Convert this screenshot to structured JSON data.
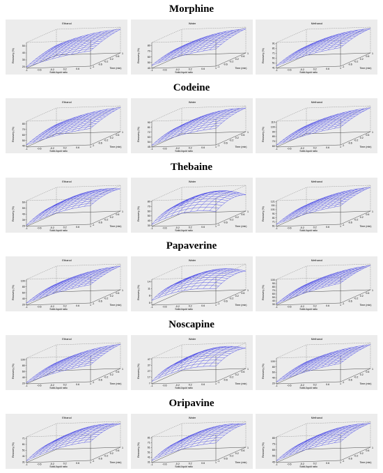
{
  "colors": {
    "mesh": "#4a4ae6",
    "panel_bg": "#ececec",
    "frame": "#333333"
  },
  "chart_data": [
    {
      "compound": "Morphine",
      "panels": [
        {
          "type": "surface3d",
          "title": "Ethanol",
          "xlabel": "Solid-liquid ratio",
          "ylabel": "Time (min)",
          "zlabel": "Recovery (%)",
          "xticks": [
            "-1",
            "-0.6",
            "-0.2",
            "0.2",
            "0.6",
            "1"
          ],
          "yticks": [
            "-1",
            "-0.6",
            "-0.2",
            "0.2",
            "0.6",
            "1"
          ],
          "zticks": [
            "20",
            "30",
            "40",
            "50"
          ],
          "zrange": [
            18,
            55
          ],
          "corners": {
            "x_lo_y_lo": 20,
            "x_hi_y_lo": 40,
            "x_lo_y_hi": 32,
            "x_hi_y_hi": 52
          },
          "curvature": 4
        },
        {
          "type": "surface3d",
          "title": "Water",
          "xlabel": "Solid-liquid ratio",
          "ylabel": "Time (min)",
          "zlabel": "Recovery (%)",
          "xticks": [
            "-1",
            "-0.6",
            "-0.2",
            "0.2",
            "0.6",
            "1"
          ],
          "yticks": [
            "-1",
            "-0.6",
            "-0.2",
            "0.2",
            "0.6",
            "1"
          ],
          "zticks": [
            "40",
            "50",
            "60",
            "70",
            "80"
          ],
          "zrange": [
            40,
            85
          ],
          "corners": {
            "x_lo_y_lo": 45,
            "x_hi_y_lo": 70,
            "x_lo_y_hi": 55,
            "x_hi_y_hi": 82
          },
          "curvature": 6
        },
        {
          "type": "surface3d",
          "title": "Methanol",
          "xlabel": "Solid-liquid ratio",
          "ylabel": "Time (min)",
          "zlabel": "Recovery (%)",
          "xticks": [
            "-1",
            "-0.6",
            "-0.2",
            "0.2",
            "0.6",
            "1"
          ],
          "yticks": [
            "-1",
            "-0.6",
            "-0.2",
            "0.2",
            "0.6",
            "1"
          ],
          "zticks": [
            "41",
            "51",
            "61",
            "71",
            "81",
            "91"
          ],
          "zrange": [
            40,
            93
          ],
          "corners": {
            "x_lo_y_lo": 45,
            "x_hi_y_lo": 78,
            "x_lo_y_hi": 58,
            "x_hi_y_hi": 90
          },
          "curvature": 7
        }
      ]
    },
    {
      "compound": "Codeine",
      "panels": [
        {
          "type": "surface3d",
          "title": "Ethanol",
          "xlabel": "Solid-liquid ratio",
          "ylabel": "Time (min)",
          "zlabel": "Recovery (%)",
          "xticks": [
            "-1",
            "-0.6",
            "-0.2",
            "0.2",
            "0.6",
            "1"
          ],
          "yticks": [
            "-1",
            "-0.6",
            "-0.2",
            "0.2",
            "0.6",
            "1"
          ],
          "zticks": [
            "40",
            "50",
            "60",
            "70",
            "80"
          ],
          "zrange": [
            38,
            85
          ],
          "corners": {
            "x_lo_y_lo": 42,
            "x_hi_y_lo": 68,
            "x_lo_y_hi": 55,
            "x_hi_y_hi": 82
          },
          "curvature": 5
        },
        {
          "type": "surface3d",
          "title": "Water",
          "xlabel": "Solid-liquid ratio",
          "ylabel": "Time (min)",
          "zlabel": "Recovery (%)",
          "xticks": [
            "-1",
            "-0.6",
            "-0.2",
            "0.2",
            "0.6",
            "1"
          ],
          "yticks": [
            "-1",
            "-0.6",
            "-0.2",
            "0.2",
            "0.6",
            "1"
          ],
          "zticks": [
            "45",
            "54",
            "63",
            "72",
            "81",
            "90"
          ],
          "zrange": [
            45,
            92
          ],
          "corners": {
            "x_lo_y_lo": 48,
            "x_hi_y_lo": 75,
            "x_lo_y_hi": 60,
            "x_hi_y_hi": 88
          },
          "curvature": 8
        },
        {
          "type": "surface3d",
          "title": "Methanol",
          "xlabel": "Solid-liquid ratio",
          "ylabel": "Time (min)",
          "zlabel": "Recovery (%)",
          "xticks": [
            "-1",
            "-0.6",
            "-0.2",
            "0.2",
            "0.6",
            "1"
          ],
          "yticks": [
            "-1",
            "-0.6",
            "-0.2",
            "0.2",
            "0.6",
            "1"
          ],
          "zticks": [
            "60",
            "70",
            "80",
            "90",
            "100",
            "110"
          ],
          "zrange": [
            58,
            112
          ],
          "corners": {
            "x_lo_y_lo": 62,
            "x_hi_y_lo": 95,
            "x_lo_y_hi": 75,
            "x_hi_y_hi": 108
          },
          "curvature": 6
        }
      ]
    },
    {
      "compound": "Thebaine",
      "panels": [
        {
          "type": "surface3d",
          "title": "Ethanol",
          "xlabel": "Solid-liquid ratio",
          "ylabel": "Time (min)",
          "zlabel": "Recovery (%)",
          "xticks": [
            "-1",
            "-0.6",
            "-0.2",
            "0.2",
            "0.6",
            "1"
          ],
          "yticks": [
            "-1",
            "-0.6",
            "-0.2",
            "0.2",
            "0.6",
            "1"
          ],
          "zticks": [
            "29",
            "39",
            "49",
            "59",
            "69"
          ],
          "zrange": [
            28,
            72
          ],
          "corners": {
            "x_lo_y_lo": 30,
            "x_hi_y_lo": 60,
            "x_lo_y_hi": 42,
            "x_hi_y_hi": 66
          },
          "curvature": 9
        },
        {
          "type": "surface3d",
          "title": "Water",
          "xlabel": "Solid-liquid ratio",
          "ylabel": "Time (min)",
          "zlabel": "Recovery (%)",
          "xticks": [
            "-1",
            "-0.6",
            "-0.2",
            "0.2",
            "0.6",
            "1"
          ],
          "yticks": [
            "-1",
            "-0.6",
            "-0.2",
            "0.2",
            "0.6",
            "1"
          ],
          "zticks": [
            "30",
            "40",
            "50",
            "60",
            "70",
            "80"
          ],
          "zrange": [
            28,
            82
          ],
          "corners": {
            "x_lo_y_lo": 32,
            "x_hi_y_lo": 55,
            "x_lo_y_hi": 45,
            "x_hi_y_hi": 62
          },
          "curvature": 18
        },
        {
          "type": "surface3d",
          "title": "Methanol",
          "xlabel": "Solid-liquid ratio",
          "ylabel": "Time (min)",
          "zlabel": "Recovery (%)",
          "xticks": [
            "-1",
            "-0.6",
            "-0.2",
            "0.2",
            "0.6",
            "1"
          ],
          "yticks": [
            "-1",
            "-0.6",
            "-0.2",
            "0.2",
            "0.6",
            "1"
          ],
          "zticks": [
            "61",
            "71",
            "81",
            "91",
            "101",
            "111",
            "121"
          ],
          "zrange": [
            60,
            123
          ],
          "corners": {
            "x_lo_y_lo": 65,
            "x_hi_y_lo": 105,
            "x_lo_y_hi": 80,
            "x_hi_y_hi": 118
          },
          "curvature": 8
        }
      ]
    },
    {
      "compound": "Papaverine",
      "panels": [
        {
          "type": "surface3d",
          "title": "Ethanol",
          "xlabel": "Solid-liquid ratio",
          "ylabel": "Time (min)",
          "zlabel": "Recovery (%)",
          "xticks": [
            "-1",
            "-0.6",
            "-0.2",
            "0.2",
            "0.6",
            "1"
          ],
          "yticks": [
            "-1",
            "-0.6",
            "-0.2",
            "0.2",
            "0.6",
            "1"
          ],
          "zticks": [
            "20",
            "40",
            "60",
            "80",
            "100"
          ],
          "zrange": [
            18,
            105
          ],
          "corners": {
            "x_lo_y_lo": 25,
            "x_hi_y_lo": 80,
            "x_lo_y_hi": 45,
            "x_hi_y_hi": 98
          },
          "curvature": 10
        },
        {
          "type": "surface3d",
          "title": "Water",
          "xlabel": "Solid-liquid ratio",
          "ylabel": "Time (min)",
          "zlabel": "Recovery (%)",
          "xticks": [
            "-1",
            "-0.6",
            "-0.2",
            "0.2",
            "0.6",
            "1"
          ],
          "yticks": [
            "-1",
            "-0.6",
            "-0.2",
            "0.2",
            "0.6",
            "1"
          ],
          "zticks": [
            "5",
            "8",
            "11",
            "14"
          ],
          "zrange": [
            4,
            15
          ],
          "corners": {
            "x_lo_y_lo": 6,
            "x_hi_y_lo": 10,
            "x_lo_y_hi": 8,
            "x_hi_y_hi": 12
          },
          "curvature": 3
        },
        {
          "type": "surface3d",
          "title": "Methanol",
          "xlabel": "Solid-liquid ratio",
          "ylabel": "Time (min)",
          "zlabel": "Recovery (%)",
          "xticks": [
            "-1",
            "-0.6",
            "-0.2",
            "0.2",
            "0.6",
            "1"
          ],
          "yticks": [
            "-1",
            "-0.6",
            "-0.2",
            "0.2",
            "0.6",
            "1"
          ],
          "zticks": [
            "30",
            "40",
            "50",
            "60",
            "70",
            "80",
            "90",
            "100"
          ],
          "zrange": [
            28,
            102
          ],
          "corners": {
            "x_lo_y_lo": 32,
            "x_hi_y_lo": 85,
            "x_lo_y_hi": 50,
            "x_hi_y_hi": 98
          },
          "curvature": 8
        }
      ]
    },
    {
      "compound": "Noscapine",
      "panels": [
        {
          "type": "surface3d",
          "title": "Ethanol",
          "xlabel": "Solid-liquid ratio",
          "ylabel": "Time (min)",
          "zlabel": "Recovery (%)",
          "xticks": [
            "-1",
            "-0.6",
            "-0.2",
            "0.2",
            "0.6",
            "1"
          ],
          "yticks": [
            "-1",
            "-0.6",
            "-0.2",
            "0.2",
            "0.6",
            "1"
          ],
          "zticks": [
            "20",
            "40",
            "60",
            "80",
            "100"
          ],
          "zrange": [
            18,
            105
          ],
          "corners": {
            "x_lo_y_lo": 22,
            "x_hi_y_lo": 75,
            "x_lo_y_hi": 45,
            "x_hi_y_hi": 100
          },
          "curvature": 10
        },
        {
          "type": "surface3d",
          "title": "Water",
          "xlabel": "Solid-liquid ratio",
          "ylabel": "Time (min)",
          "zlabel": "Recovery (%)",
          "xticks": [
            "-1",
            "-0.6",
            "-0.2",
            "0.2",
            "0.6",
            "1"
          ],
          "yticks": [
            "-1",
            "-0.6",
            "-0.2",
            "0.2",
            "0.6",
            "1"
          ],
          "zticks": [
            "7",
            "17",
            "27",
            "37",
            "47"
          ],
          "zrange": [
            6,
            49
          ],
          "corners": {
            "x_lo_y_lo": 10,
            "x_hi_y_lo": 32,
            "x_lo_y_hi": 20,
            "x_hi_y_hi": 40
          },
          "curvature": 12
        },
        {
          "type": "surface3d",
          "title": "Methanol",
          "xlabel": "Solid-liquid ratio",
          "ylabel": "Time (min)",
          "zlabel": "Recovery (%)",
          "xticks": [
            "-1",
            "-0.6",
            "-0.2",
            "0.2",
            "0.6",
            "1"
          ],
          "yticks": [
            "-1",
            "-0.6",
            "-0.2",
            "0.2",
            "0.6",
            "1"
          ],
          "zticks": [
            "20",
            "40",
            "60",
            "80",
            "100"
          ],
          "zrange": [
            18,
            112
          ],
          "corners": {
            "x_lo_y_lo": 25,
            "x_hi_y_lo": 85,
            "x_lo_y_hi": 50,
            "x_hi_y_hi": 105
          },
          "curvature": 10
        }
      ]
    },
    {
      "compound": "Oripavine",
      "panels": [
        {
          "type": "surface3d",
          "title": "Ethanol",
          "xlabel": "Solid-liquid ratio",
          "ylabel": "Time (min)",
          "zlabel": "Recovery (%)",
          "xticks": [
            "-1",
            "-0.6",
            "-0.2",
            "0.2",
            "0.6",
            "1"
          ],
          "yticks": [
            "-1",
            "-0.6",
            "-0.2",
            "0.2",
            "0.6",
            "1"
          ],
          "zticks": [
            "31",
            "41",
            "51",
            "61",
            "71"
          ],
          "zrange": [
            30,
            74
          ],
          "corners": {
            "x_lo_y_lo": 33,
            "x_hi_y_lo": 62,
            "x_lo_y_hi": 45,
            "x_hi_y_hi": 70
          },
          "curvature": 9
        },
        {
          "type": "surface3d",
          "title": "Water",
          "xlabel": "Solid-liquid ratio",
          "ylabel": "Time (min)",
          "zlabel": "Recovery (%)",
          "xticks": [
            "-1",
            "-0.6",
            "-0.2",
            "0.2",
            "0.6",
            "1"
          ],
          "yticks": [
            "-1",
            "-0.6",
            "-0.2",
            "0.2",
            "0.6",
            "1"
          ],
          "zticks": [
            "31",
            "41",
            "51",
            "61",
            "71",
            "81"
          ],
          "zrange": [
            30,
            83
          ],
          "corners": {
            "x_lo_y_lo": 34,
            "x_hi_y_lo": 66,
            "x_lo_y_hi": 48,
            "x_hi_y_hi": 78
          },
          "curvature": 11
        },
        {
          "type": "surface3d",
          "title": "Methanol",
          "xlabel": "Solid-liquid ratio",
          "ylabel": "Time (min)",
          "zlabel": "Recovery (%)",
          "xticks": [
            "-1",
            "-0.6",
            "-0.2",
            "0.2",
            "0.6",
            "1"
          ],
          "yticks": [
            "-1",
            "-0.6",
            "-0.2",
            "0.2",
            "0.6",
            "1"
          ],
          "zticks": [
            "45",
            "55",
            "65",
            "75",
            "85"
          ],
          "zrange": [
            44,
            87
          ],
          "corners": {
            "x_lo_y_lo": 47,
            "x_hi_y_lo": 75,
            "x_lo_y_hi": 58,
            "x_hi_y_hi": 84
          },
          "curvature": 7
        }
      ]
    }
  ]
}
